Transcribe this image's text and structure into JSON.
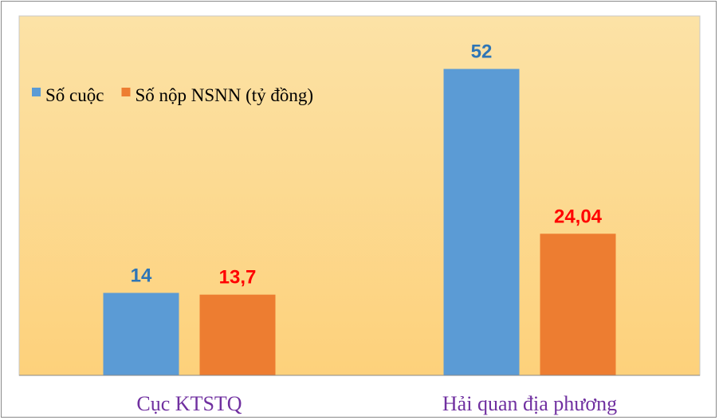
{
  "chart_data": {
    "type": "bar",
    "categories": [
      "Cục KTSTQ",
      "Hải quan địa phương"
    ],
    "series": [
      {
        "name": "Số cuộc",
        "values": [
          14,
          52
        ],
        "labels": [
          "14",
          "52"
        ],
        "color": "#5b9bd5",
        "label_color": "#2e75b6"
      },
      {
        "name": "Số nộp NSNN (tỷ đồng)",
        "values": [
          13.7,
          24.04
        ],
        "labels": [
          "13,7",
          "24,04"
        ],
        "color": "#ed7d31",
        "label_color": "#ff0000"
      }
    ],
    "ylim": [
      0,
      61
    ],
    "grid": false,
    "legend_position": "top-left",
    "category_label_color": "#7030a0",
    "plot_background": {
      "top": "#fce2a6",
      "bottom": "#fdd17b"
    },
    "plot_border_color": "#c8c8c8",
    "axis_color": "#888888"
  }
}
